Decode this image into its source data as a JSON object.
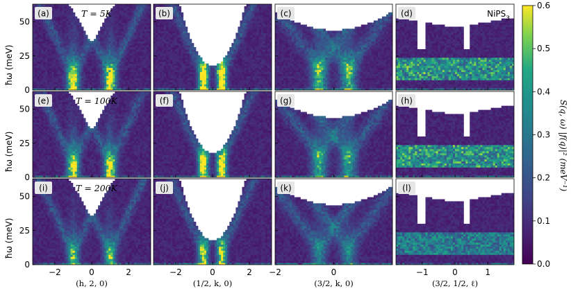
{
  "chart_data": {
    "type": "heatmap",
    "colormap": "viridis",
    "material_label": "NiPS",
    "material_sub": "3",
    "ylabel": "ħω (meV)",
    "colorbar": {
      "label": "S(q, ω) |f(q)|² (meV⁻¹)",
      "range": [
        0.0,
        0.6
      ],
      "ticks": [
        0.0,
        0.1,
        0.2,
        0.3,
        0.4,
        0.5,
        0.6
      ],
      "tick_labels": [
        "0.0",
        "0.1",
        "0.2",
        "0.3",
        "0.4",
        "0.5",
        "0.6"
      ]
    },
    "energy_range": [
      0,
      63
    ],
    "energy_ticks": [
      0,
      25,
      50
    ],
    "columns": [
      {
        "xlabel": "(h, 2, 0)",
        "xlim": [
          -3.2,
          3.2
        ],
        "xticks": [
          -2,
          0,
          2
        ],
        "xtick_labels": [
          "−2",
          "0",
          "2"
        ]
      },
      {
        "xlabel": "(1/2, k, 0)",
        "xlim": [
          -3.2,
          3.2
        ],
        "xticks": [
          -2,
          0,
          2
        ],
        "xtick_labels": [
          "−2",
          "0",
          "2"
        ]
      },
      {
        "xlabel": "(3/2, k, 0)",
        "xlim": [
          -2.0,
          2.0
        ],
        "xticks": [
          -2,
          0
        ],
        "xtick_labels": [
          "−2",
          "0"
        ]
      },
      {
        "xlabel": "(3/2, 1/2, ℓ)",
        "xlim": [
          -1.8,
          1.8
        ],
        "xticks": [
          -1,
          0,
          1
        ],
        "xtick_labels": [
          "−1",
          "0",
          "1"
        ]
      }
    ],
    "temperatures": [
      {
        "label": "T = 5K",
        "kelvin": 5
      },
      {
        "label": "T = 100K",
        "kelvin": 100
      },
      {
        "label": "T = 200K",
        "kelvin": 200
      }
    ],
    "panels": [
      {
        "id": "(a)",
        "row": 0,
        "col": 0,
        "cutoff_min_meV": 34,
        "mode_energy_meV": 10,
        "mode_positions": [
          -1,
          1
        ],
        "peak_intensity": 0.55
      },
      {
        "id": "(b)",
        "row": 0,
        "col": 1,
        "cutoff_min_meV": 18,
        "mode_energy_meV": 12,
        "mode_positions": [
          -0.5,
          0.5
        ],
        "peak_intensity": 0.6
      },
      {
        "id": "(c)",
        "row": 0,
        "col": 2,
        "cutoff_min_meV": 44,
        "mode_energy_meV": 16,
        "mode_positions": [
          -0.5,
          0.5
        ],
        "peak_intensity": 0.35
      },
      {
        "id": "(d)",
        "row": 0,
        "col": 3,
        "cutoff_min_meV": 46,
        "band_meV": [
          8,
          24
        ],
        "peak_intensity": 0.45
      },
      {
        "id": "(e)",
        "row": 1,
        "col": 0,
        "cutoff_min_meV": 34,
        "mode_energy_meV": 10,
        "mode_positions": [
          -1,
          1
        ],
        "peak_intensity": 0.5
      },
      {
        "id": "(f)",
        "row": 1,
        "col": 1,
        "cutoff_min_meV": 18,
        "mode_energy_meV": 12,
        "mode_positions": [
          -0.5,
          0.5
        ],
        "peak_intensity": 0.6
      },
      {
        "id": "(g)",
        "row": 1,
        "col": 2,
        "cutoff_min_meV": 44,
        "mode_energy_meV": 16,
        "mode_positions": [
          -0.5,
          0.5
        ],
        "peak_intensity": 0.3
      },
      {
        "id": "(h)",
        "row": 1,
        "col": 3,
        "cutoff_min_meV": 46,
        "band_meV": [
          8,
          24
        ],
        "peak_intensity": 0.45
      },
      {
        "id": "(i)",
        "row": 2,
        "col": 0,
        "cutoff_min_meV": 34,
        "mode_energy_meV": 8,
        "mode_positions": [
          -1,
          1
        ],
        "peak_intensity": 0.35
      },
      {
        "id": "(j)",
        "row": 2,
        "col": 1,
        "cutoff_min_meV": 18,
        "mode_energy_meV": 10,
        "mode_positions": [
          -0.5,
          0.5
        ],
        "peak_intensity": 0.45
      },
      {
        "id": "(k)",
        "row": 2,
        "col": 2,
        "cutoff_min_meV": 44,
        "mode_energy_meV": 12,
        "mode_positions": [
          -0.5,
          0.5
        ],
        "peak_intensity": 0.2
      },
      {
        "id": "(l)",
        "row": 2,
        "col": 3,
        "cutoff_min_meV": 46,
        "band_meV": [
          8,
          24
        ],
        "peak_intensity": 0.35
      }
    ]
  }
}
